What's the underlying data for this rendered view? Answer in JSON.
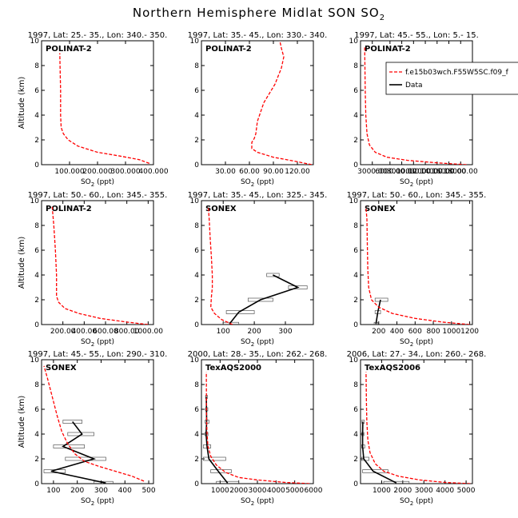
{
  "figure": {
    "title_prefix": "Northern Hemisphere Midlat SON SO",
    "title_sub": "2",
    "ylabel": "Altitude (km)",
    "xlabel_prefix": "SO",
    "xlabel_sub": "2",
    "xlabel_suffix": " (ppt)"
  },
  "legend": {
    "model_label": "f.e15b03wch.F55W5SC.f09_f",
    "data_label": "Data"
  },
  "colors": {
    "model": "#ff0000",
    "data": "#000000"
  },
  "chart_data": [
    {
      "type": "line",
      "title": "1997, Lat: 25.- 35., Lon: 340.- 350.",
      "campaign": "POLINAT-2",
      "xlim": [
        0,
        400
      ],
      "ylim": [
        0,
        10
      ],
      "xticks": [
        100,
        200,
        300,
        400
      ],
      "xtick_labels": [
        "100.000",
        "200.000",
        "300.000",
        "400.000"
      ],
      "yticks": [
        0,
        2,
        4,
        6,
        8,
        10
      ],
      "model": {
        "x": [
          385,
          350,
          280,
          200,
          130,
          95,
          78,
          70,
          68,
          68,
          66,
          65
        ],
        "y": [
          0.1,
          0.4,
          0.7,
          1.0,
          1.5,
          2.0,
          2.5,
          3.0,
          4.0,
          6.0,
          8.0,
          9.0
        ]
      },
      "obs": []
    },
    {
      "type": "line",
      "title": "1997, Lat: 35.- 45., Lon: 330.- 340.",
      "campaign": "POLINAT-2",
      "xlim": [
        0,
        140
      ],
      "ylim": [
        0,
        10
      ],
      "xticks": [
        30,
        60,
        90,
        120
      ],
      "xtick_labels": [
        "30.00",
        "60.00",
        "90.00",
        "120.00"
      ],
      "yticks": [
        0,
        2,
        4,
        6,
        8,
        10
      ],
      "model": {
        "x": [
          138,
          115,
          90,
          70,
          63,
          63,
          66,
          68,
          70,
          78,
          92,
          100,
          103,
          100,
          98
        ],
        "y": [
          0.0,
          0.3,
          0.6,
          1.0,
          1.3,
          1.8,
          2.1,
          2.5,
          3.5,
          5.0,
          6.5,
          7.8,
          8.7,
          9.4,
          10.0
        ]
      },
      "obs": []
    },
    {
      "type": "line",
      "title": "1997, Lat: 45.- 55., Lon: 5.- 15.",
      "campaign": "POLINAT-2",
      "xlim": [
        1000,
        20000
      ],
      "ylim": [
        0,
        10
      ],
      "xticks": [
        3000,
        6000,
        8000,
        10000,
        12000,
        14000,
        16000,
        18000
      ],
      "xtick_labels": [
        "3000.00",
        "6000.00",
        "8000.00",
        "10000.00",
        "12000.00",
        "14000.00",
        "16000.00",
        "18000.00"
      ],
      "yticks": [
        0,
        2,
        4,
        6,
        8,
        10
      ],
      "model": {
        "x": [
          19000,
          14000,
          9000,
          5500,
          3500,
          2500,
          2100,
          1900,
          1800,
          1750,
          1700
        ],
        "y": [
          0.0,
          0.15,
          0.35,
          0.6,
          1.0,
          1.6,
          2.5,
          4.0,
          6.0,
          8.0,
          9.5
        ]
      },
      "obs": []
    },
    {
      "type": "line",
      "title": "1997, Lat: 50.- 60., Lon: 345.- 355.",
      "campaign": "POLINAT-2",
      "xlim": [
        0,
        1050
      ],
      "ylim": [
        0,
        10
      ],
      "xticks": [
        200,
        400,
        600,
        800,
        1000
      ],
      "xtick_labels": [
        "200.00",
        "400.00",
        "600.00",
        "800.00",
        "1000.00"
      ],
      "yticks": [
        0,
        2,
        4,
        6,
        8,
        10
      ],
      "model": {
        "x": [
          1000,
          800,
          550,
          350,
          220,
          160,
          140,
          140,
          130,
          115,
          100
        ],
        "y": [
          0.0,
          0.2,
          0.5,
          0.9,
          1.3,
          1.8,
          2.3,
          4.0,
          6.0,
          8.0,
          9.5
        ]
      },
      "obs": []
    },
    {
      "type": "line",
      "title": "1997, Lat: 35.- 45., Lon: 325.- 345.",
      "campaign": "SONEX",
      "xlim": [
        30,
        390
      ],
      "ylim": [
        0,
        10
      ],
      "xticks": [
        100,
        200,
        300
      ],
      "xtick_labels": [
        "100",
        "200",
        "300"
      ],
      "yticks": [
        0,
        2,
        4,
        6,
        8,
        10
      ],
      "model": {
        "x": [
          130,
          95,
          72,
          60,
          62,
          65,
          65,
          62,
          58,
          55,
          52
        ],
        "y": [
          0.0,
          0.4,
          0.9,
          1.4,
          2.2,
          3.0,
          4.0,
          5.5,
          7.0,
          8.5,
          9.5
        ]
      },
      "obs": [
        {
          "y": 0.05,
          "x": 120,
          "lo": 100,
          "hi": 150
        },
        {
          "y": 1.0,
          "x": 150,
          "lo": 110,
          "hi": 200
        },
        {
          "y": 2.0,
          "x": 220,
          "lo": 180,
          "hi": 260
        },
        {
          "y": 3.0,
          "x": 340,
          "lo": 310,
          "hi": 370
        },
        {
          "y": 4.0,
          "x": 260,
          "lo": 240,
          "hi": 280
        }
      ]
    },
    {
      "type": "line",
      "title": "1997, Lat: 50.- 60., Lon: 345.- 355.",
      "campaign": "SONEX",
      "xlim": [
        0,
        1230
      ],
      "ylim": [
        0,
        10
      ],
      "xticks": [
        200,
        400,
        600,
        800,
        1000,
        1200
      ],
      "xtick_labels": [
        "200",
        "400",
        "600",
        "800",
        "1000",
        "1200"
      ],
      "yticks": [
        0,
        2,
        4,
        6,
        8,
        10
      ],
      "model": {
        "x": [
          1200,
          900,
          600,
          350,
          200,
          120,
          90,
          80,
          75,
          70,
          60
        ],
        "y": [
          0.0,
          0.2,
          0.5,
          0.9,
          1.4,
          2.0,
          3.0,
          4.5,
          6.5,
          8.5,
          9.5
        ]
      },
      "obs": [
        {
          "y": 0.05,
          "x": 170,
          "lo": 150,
          "hi": 190
        },
        {
          "y": 1.0,
          "x": 190,
          "lo": 160,
          "hi": 220
        },
        {
          "y": 2.0,
          "x": 220,
          "lo": 160,
          "hi": 300
        }
      ]
    },
    {
      "type": "line",
      "title": "1997, Lat: 45.- 55., Lon: 290.- 310.",
      "campaign": "SONEX",
      "xlim": [
        50,
        520
      ],
      "ylim": [
        0,
        10
      ],
      "xticks": [
        100,
        200,
        300,
        400,
        500
      ],
      "xtick_labels": [
        "100",
        "200",
        "300",
        "400",
        "500"
      ],
      "yticks": [
        0,
        2,
        4,
        6,
        8,
        10
      ],
      "model": {
        "x": [
          480,
          430,
          360,
          290,
          230,
          190,
          160,
          135,
          115,
          95,
          75,
          60
        ],
        "y": [
          0.2,
          0.6,
          1.0,
          1.4,
          1.8,
          2.4,
          3.2,
          4.2,
          5.5,
          7.0,
          8.5,
          9.5
        ]
      },
      "obs": [
        {
          "y": 0.05,
          "x": 320,
          "lo": 270,
          "hi": 350
        },
        {
          "y": 1.0,
          "x": 90,
          "lo": 60,
          "hi": 150
        },
        {
          "y": 2.0,
          "x": 270,
          "lo": 150,
          "hi": 320
        },
        {
          "y": 3.0,
          "x": 140,
          "lo": 100,
          "hi": 230
        },
        {
          "y": 4.0,
          "x": 220,
          "lo": 160,
          "hi": 270
        },
        {
          "y": 5.0,
          "x": 180,
          "lo": 140,
          "hi": 220
        }
      ]
    },
    {
      "type": "line",
      "title": "2000, Lat: 28.- 35., Lon: 262.- 268.",
      "campaign": "TexAQS2000",
      "xlim": [
        0,
        6000
      ],
      "ylim": [
        0,
        10
      ],
      "xticks": [
        1000,
        2000,
        3000,
        4000,
        5000,
        6000
      ],
      "xtick_labels": [
        "1000",
        "2000",
        "3000",
        "4000",
        "5000",
        "6000"
      ],
      "yticks": [
        0,
        2,
        4,
        6,
        8,
        10
      ],
      "model": {
        "x": [
          5800,
          4500,
          3000,
          2000,
          1300,
          800,
          500,
          350,
          300,
          280,
          270,
          265,
          260
        ],
        "y": [
          0.0,
          0.1,
          0.3,
          0.5,
          0.9,
          1.5,
          2.2,
          3.0,
          4.0,
          5.0,
          6.0,
          7.5,
          9.0
        ]
      },
      "obs": [
        {
          "y": 0.05,
          "x": 1400,
          "lo": 800,
          "hi": 2000
        },
        {
          "y": 1.0,
          "x": 900,
          "lo": 500,
          "hi": 1600
        },
        {
          "y": 2.0,
          "x": 400,
          "lo": 100,
          "hi": 1300
        },
        {
          "y": 3.0,
          "x": 300,
          "lo": 100,
          "hi": 500
        },
        {
          "y": 4.0,
          "x": 250,
          "lo": 180,
          "hi": 350
        },
        {
          "y": 5.0,
          "x": 280,
          "lo": 200,
          "hi": 400
        },
        {
          "y": 6.0,
          "x": 270,
          "lo": 220,
          "hi": 340
        },
        {
          "y": 7.0,
          "x": 260,
          "lo": 220,
          "hi": 320
        }
      ]
    },
    {
      "type": "line",
      "title": "2006, Lat: 27.- 34., Lon: 260.- 268.",
      "campaign": "TexAQS2006",
      "xlim": [
        0,
        5300
      ],
      "ylim": [
        0,
        10
      ],
      "xticks": [
        1000,
        2000,
        3000,
        4000,
        5000
      ],
      "xtick_labels": [
        "1000",
        "2000",
        "3000",
        "4000",
        "5000"
      ],
      "yticks": [
        0,
        2,
        4,
        6,
        8,
        10
      ],
      "model": {
        "x": [
          5200,
          4000,
          2800,
          1800,
          1100,
          700,
          450,
          350,
          300,
          280,
          270,
          260
        ],
        "y": [
          0.0,
          0.1,
          0.3,
          0.6,
          1.0,
          1.6,
          2.5,
          3.5,
          5.0,
          6.5,
          8.0,
          9.0
        ]
      },
      "obs": [
        {
          "y": 0.05,
          "x": 1700,
          "lo": 1100,
          "hi": 2300
        },
        {
          "y": 1.0,
          "x": 600,
          "lo": 100,
          "hi": 1300
        },
        {
          "y": 2.0,
          "x": 150,
          "lo": 50,
          "hi": 400
        },
        {
          "y": 3.0,
          "x": 100,
          "lo": 50,
          "hi": 200
        },
        {
          "y": 4.0,
          "x": 100,
          "lo": 60,
          "hi": 160
        },
        {
          "y": 5.0,
          "x": 110,
          "lo": 70,
          "hi": 180
        }
      ]
    }
  ]
}
